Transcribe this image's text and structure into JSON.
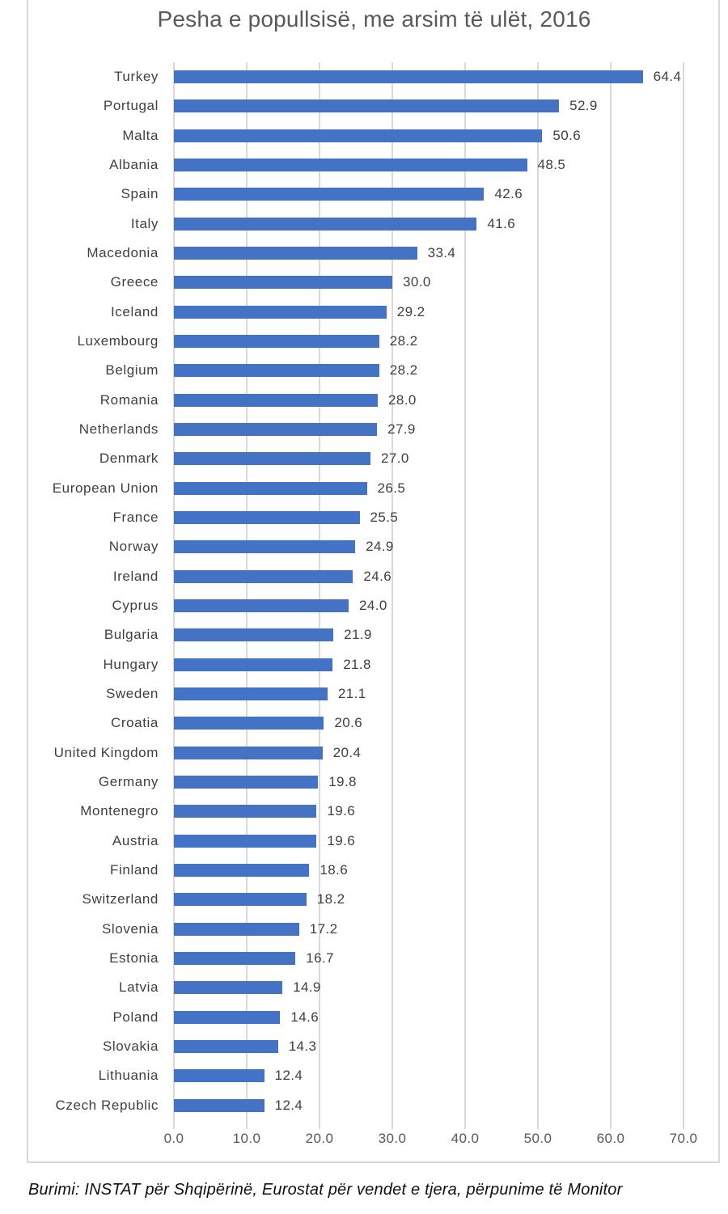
{
  "chart_data": {
    "type": "bar",
    "orientation": "horizontal",
    "title": "Pesha e popullsisë, me arsim të ulët, 2016",
    "categories": [
      "Turkey",
      "Portugal",
      "Malta",
      "Albania",
      "Spain",
      "Italy",
      "Macedonia",
      "Greece",
      "Iceland",
      "Luxembourg",
      "Belgium",
      "Romania",
      "Netherlands",
      "Denmark",
      "European Union",
      "France",
      "Norway",
      "Ireland",
      "Cyprus",
      "Bulgaria",
      "Hungary",
      "Sweden",
      "Croatia",
      "United Kingdom",
      "Germany",
      "Montenegro",
      "Austria",
      "Finland",
      "Switzerland",
      "Slovenia",
      "Estonia",
      "Latvia",
      "Poland",
      "Slovakia",
      "Lithuania",
      "Czech Republic"
    ],
    "values": [
      64.4,
      52.9,
      50.6,
      48.5,
      42.6,
      41.6,
      33.4,
      30.0,
      29.2,
      28.2,
      28.2,
      28.0,
      27.9,
      27.0,
      26.5,
      25.5,
      24.9,
      24.6,
      24.0,
      21.9,
      21.8,
      21.1,
      20.6,
      20.4,
      19.8,
      19.6,
      19.6,
      18.6,
      18.2,
      17.2,
      16.7,
      14.9,
      14.6,
      14.3,
      12.4,
      12.4
    ],
    "xlabel": "",
    "ylabel": "",
    "xlim": [
      0,
      70
    ],
    "x_ticks": [
      "0.0",
      "10.0",
      "20.0",
      "30.0",
      "40.0",
      "50.0",
      "60.0",
      "70.0"
    ],
    "grid": true,
    "legend": "none",
    "bar_color": "#4472C4",
    "gridline_color": "#d9d9d9"
  },
  "footer": {
    "source_note": "Burimi: INSTAT për Shqipërinë, Eurostat për vendet e tjera, përpunime të Monitor"
  }
}
